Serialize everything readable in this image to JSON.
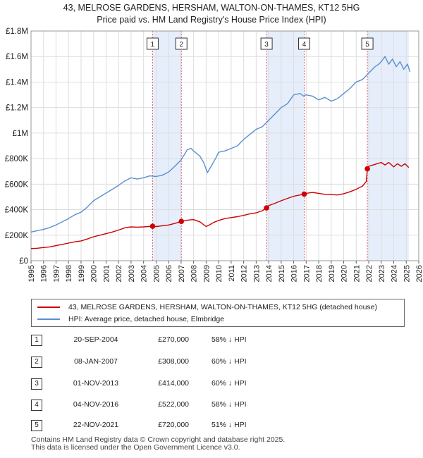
{
  "title_line1": "43, MELROSE GARDENS, HERSHAM, WALTON-ON-THAMES, KT12 5HG",
  "title_line2": "Price paid vs. HM Land Registry's House Price Index (HPI)",
  "colors": {
    "property": "#cc0000",
    "hpi": "#5b8fd0",
    "shade": "#e6eefb",
    "marker_line": "#dd6666",
    "grid": "#dddddd"
  },
  "chart_data": {
    "type": "line",
    "xlim": [
      1995,
      2026
    ],
    "ylim": [
      0,
      1800000
    ],
    "y_ticks": [
      {
        "value": 0,
        "label": "£0"
      },
      {
        "value": 200000,
        "label": "£200K"
      },
      {
        "value": 400000,
        "label": "£400K"
      },
      {
        "value": 600000,
        "label": "£600K"
      },
      {
        "value": 800000,
        "label": "£800K"
      },
      {
        "value": 1000000,
        "label": "£1M"
      },
      {
        "value": 1200000,
        "label": "£1.2M"
      },
      {
        "value": 1400000,
        "label": "£1.4M"
      },
      {
        "value": 1600000,
        "label": "£1.6M"
      },
      {
        "value": 1800000,
        "label": "£1.8M"
      }
    ],
    "x_ticks": [
      "1995",
      "1996",
      "1997",
      "1998",
      "1999",
      "2000",
      "2001",
      "2002",
      "2003",
      "2004",
      "2005",
      "2006",
      "2007",
      "2008",
      "2009",
      "2010",
      "2011",
      "2012",
      "2013",
      "2014",
      "2015",
      "2016",
      "2017",
      "2018",
      "2019",
      "2020",
      "2021",
      "2022",
      "2023",
      "2024",
      "2025",
      "2026"
    ],
    "grid": true,
    "legend_position": "below",
    "shaded_ranges": [
      [
        2004.72,
        2007.02
      ],
      [
        2013.83,
        2016.84
      ],
      [
        2021.89,
        2025.2
      ]
    ],
    "series": [
      {
        "name": "43, MELROSE GARDENS, HERSHAM, WALTON-ON-THAMES, KT12 5HG (detached house)",
        "x": [
          1995,
          1995.5,
          1996,
          1996.5,
          1997,
          1997.5,
          1998,
          1998.5,
          1999,
          1999.5,
          2000,
          2000.5,
          2001,
          2001.5,
          2002,
          2002.5,
          2003,
          2003.5,
          2004,
          2004.72,
          2005,
          2005.5,
          2006,
          2006.5,
          2007.02,
          2007.5,
          2008,
          2008.5,
          2009,
          2009.3,
          2009.6,
          2010,
          2010.5,
          2011,
          2011.5,
          2012,
          2012.5,
          2013,
          2013.5,
          2013.83,
          2014,
          2014.5,
          2015,
          2015.5,
          2016,
          2016.5,
          2016.84,
          2017,
          2017.5,
          2018,
          2018.5,
          2019,
          2019.5,
          2020,
          2020.5,
          2021,
          2021.5,
          2021.8,
          2021.89,
          2022,
          2022.5,
          2023,
          2023.3,
          2023.6,
          2024,
          2024.3,
          2024.6,
          2024.9,
          2025.2
        ],
        "y": [
          95000,
          98000,
          103000,
          108000,
          118000,
          128000,
          138000,
          148000,
          155000,
          170000,
          188000,
          200000,
          212000,
          225000,
          240000,
          258000,
          265000,
          263000,
          265000,
          270000,
          268000,
          274000,
          280000,
          292000,
          308000,
          318000,
          322000,
          305000,
          268000,
          282000,
          300000,
          315000,
          330000,
          338000,
          345000,
          355000,
          368000,
          375000,
          392000,
          414000,
          432000,
          450000,
          470000,
          488000,
          505000,
          515000,
          522000,
          528000,
          535000,
          528000,
          520000,
          518000,
          515000,
          525000,
          540000,
          560000,
          585000,
          620000,
          720000,
          740000,
          755000,
          770000,
          750000,
          770000,
          735000,
          760000,
          740000,
          760000,
          730000
        ]
      },
      {
        "name": "HPI: Average price, detached house, Elmbridge",
        "x": [
          1995,
          1995.5,
          1996,
          1996.5,
          1997,
          1997.5,
          1998,
          1998.5,
          1999,
          1999.5,
          2000,
          2000.5,
          2001,
          2001.5,
          2002,
          2002.5,
          2003,
          2003.5,
          2004,
          2004.5,
          2005,
          2005.5,
          2006,
          2006.5,
          2007,
          2007.5,
          2007.8,
          2008,
          2008.5,
          2008.8,
          2009.1,
          2009.4,
          2009.8,
          2010,
          2010.5,
          2011,
          2011.5,
          2012,
          2012.5,
          2013,
          2013.5,
          2014,
          2014.5,
          2015,
          2015.5,
          2016,
          2016.5,
          2016.8,
          2017,
          2017.5,
          2018,
          2018.5,
          2019,
          2019.5,
          2020,
          2020.5,
          2021,
          2021.5,
          2022,
          2022.5,
          2022.8,
          2023,
          2023.3,
          2023.6,
          2023.9,
          2024.2,
          2024.5,
          2024.8,
          2025.1,
          2025.3
        ],
        "y": [
          225000,
          235000,
          245000,
          260000,
          280000,
          305000,
          330000,
          360000,
          380000,
          420000,
          470000,
          500000,
          530000,
          560000,
          590000,
          625000,
          650000,
          640000,
          650000,
          665000,
          660000,
          670000,
          695000,
          740000,
          790000,
          870000,
          880000,
          860000,
          820000,
          770000,
          690000,
          740000,
          810000,
          850000,
          860000,
          880000,
          900000,
          950000,
          990000,
          1030000,
          1050000,
          1100000,
          1150000,
          1200000,
          1230000,
          1300000,
          1310000,
          1290000,
          1300000,
          1290000,
          1260000,
          1280000,
          1250000,
          1270000,
          1310000,
          1350000,
          1400000,
          1420000,
          1470000,
          1520000,
          1540000,
          1560000,
          1600000,
          1540000,
          1580000,
          1520000,
          1560000,
          1500000,
          1540000,
          1480000
        ]
      }
    ],
    "sales": [
      {
        "num": "1",
        "x": 2004.72,
        "y": 270000
      },
      {
        "num": "2",
        "x": 2007.02,
        "y": 308000
      },
      {
        "num": "3",
        "x": 2013.83,
        "y": 414000
      },
      {
        "num": "4",
        "x": 2016.84,
        "y": 522000
      },
      {
        "num": "5",
        "x": 2021.89,
        "y": 720000
      }
    ]
  },
  "legend": {
    "property": "43, MELROSE GARDENS, HERSHAM, WALTON-ON-THAMES, KT12 5HG (detached house)",
    "hpi": "HPI: Average price, detached house, Elmbridge"
  },
  "transactions": [
    {
      "num": "1",
      "date": "20-SEP-2004",
      "price": "£270,000",
      "hpi": "58% ↓ HPI"
    },
    {
      "num": "2",
      "date": "08-JAN-2007",
      "price": "£308,000",
      "hpi": "60% ↓ HPI"
    },
    {
      "num": "3",
      "date": "01-NOV-2013",
      "price": "£414,000",
      "hpi": "60% ↓ HPI"
    },
    {
      "num": "4",
      "date": "04-NOV-2016",
      "price": "£522,000",
      "hpi": "58% ↓ HPI"
    },
    {
      "num": "5",
      "date": "22-NOV-2021",
      "price": "£720,000",
      "hpi": "51% ↓ HPI"
    }
  ],
  "footer_line1": "Contains HM Land Registry data © Crown copyright and database right 2025.",
  "footer_line2": "This data is licensed under the Open Government Licence v3.0."
}
